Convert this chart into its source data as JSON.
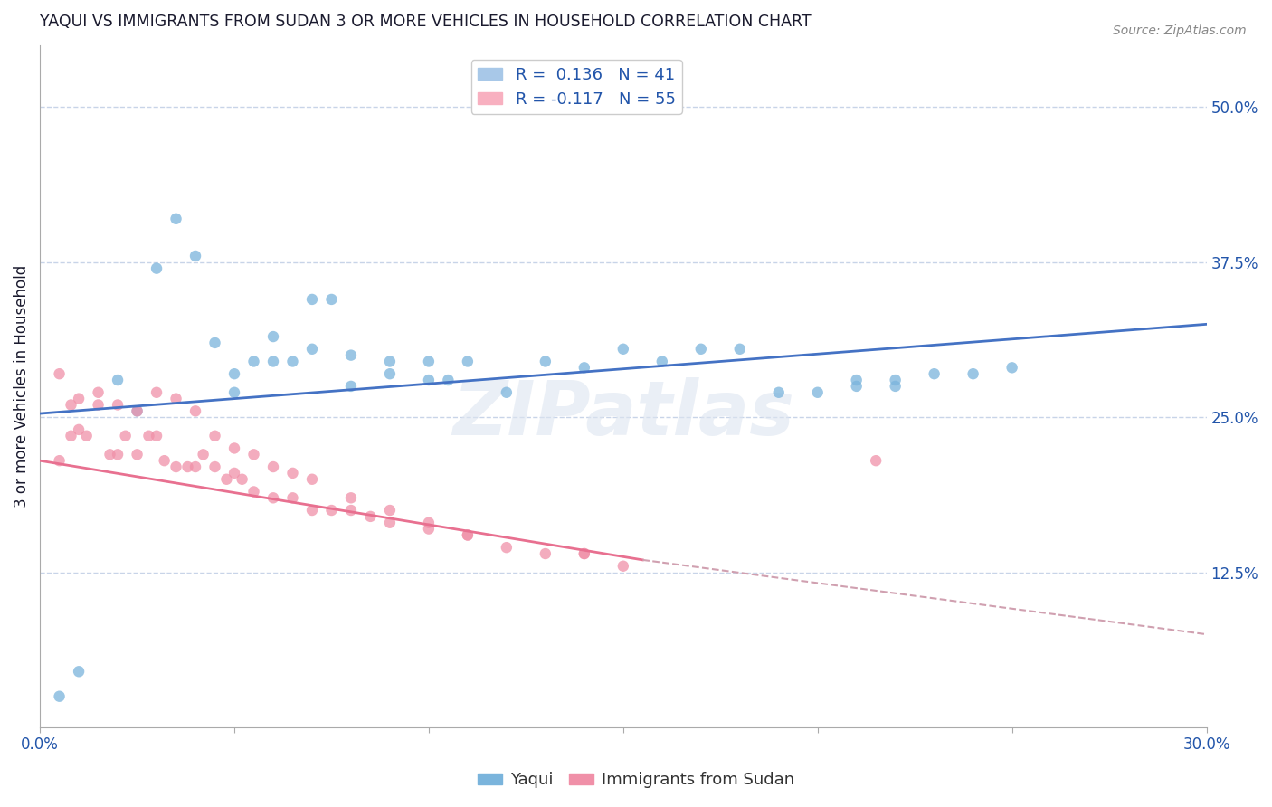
{
  "title": "YAQUI VS IMMIGRANTS FROM SUDAN 3 OR MORE VEHICLES IN HOUSEHOLD CORRELATION CHART",
  "source_text": "Source: ZipAtlas.com",
  "ylabel": "3 or more Vehicles in Household",
  "xlim": [
    0.0,
    0.3
  ],
  "ylim": [
    0.0,
    0.55
  ],
  "xticks": [
    0.0,
    0.05,
    0.1,
    0.15,
    0.2,
    0.25,
    0.3
  ],
  "xticklabels": [
    "0.0%",
    "",
    "",
    "",
    "",
    "",
    "30.0%"
  ],
  "yticks_right": [
    0.125,
    0.25,
    0.375,
    0.5
  ],
  "ytick_right_labels": [
    "12.5%",
    "25.0%",
    "37.5%",
    "50.0%"
  ],
  "legend_entries": [
    {
      "label": "R =  0.136   N = 41",
      "color": "#a8c8e8"
    },
    {
      "label": "R = -0.117   N = 55",
      "color": "#f8b0c0"
    }
  ],
  "yaqui_color": "#7ab4dc",
  "sudan_color": "#f090a8",
  "trend_yaqui_color": "#4472c4",
  "trend_sudan_color": "#e87090",
  "trend_sudan_dashed_color": "#d0a0b0",
  "watermark_text": "ZIPatlas",
  "yaqui_x": [
    0.005,
    0.01,
    0.02,
    0.025,
    0.03,
    0.035,
    0.04,
    0.045,
    0.05,
    0.055,
    0.06,
    0.065,
    0.07,
    0.075,
    0.08,
    0.09,
    0.1,
    0.105,
    0.11,
    0.12,
    0.13,
    0.14,
    0.15,
    0.16,
    0.17,
    0.18,
    0.19,
    0.2,
    0.21,
    0.22,
    0.23,
    0.24,
    0.25,
    0.06,
    0.07,
    0.08,
    0.09,
    0.1,
    0.21,
    0.22,
    0.05
  ],
  "yaqui_y": [
    0.025,
    0.045,
    0.28,
    0.255,
    0.37,
    0.41,
    0.38,
    0.31,
    0.27,
    0.295,
    0.315,
    0.295,
    0.345,
    0.345,
    0.3,
    0.295,
    0.28,
    0.28,
    0.295,
    0.27,
    0.295,
    0.29,
    0.305,
    0.295,
    0.305,
    0.305,
    0.27,
    0.27,
    0.275,
    0.28,
    0.285,
    0.285,
    0.29,
    0.295,
    0.305,
    0.275,
    0.285,
    0.295,
    0.28,
    0.275,
    0.285
  ],
  "sudan_x": [
    0.005,
    0.008,
    0.01,
    0.012,
    0.015,
    0.018,
    0.02,
    0.022,
    0.025,
    0.028,
    0.03,
    0.032,
    0.035,
    0.038,
    0.04,
    0.042,
    0.045,
    0.048,
    0.05,
    0.052,
    0.055,
    0.06,
    0.065,
    0.07,
    0.075,
    0.08,
    0.085,
    0.09,
    0.1,
    0.11,
    0.12,
    0.13,
    0.14,
    0.15,
    0.005,
    0.008,
    0.01,
    0.015,
    0.02,
    0.025,
    0.03,
    0.035,
    0.04,
    0.045,
    0.05,
    0.055,
    0.06,
    0.065,
    0.07,
    0.08,
    0.09,
    0.1,
    0.11,
    0.14,
    0.215
  ],
  "sudan_y": [
    0.215,
    0.235,
    0.24,
    0.235,
    0.26,
    0.22,
    0.22,
    0.235,
    0.22,
    0.235,
    0.235,
    0.215,
    0.21,
    0.21,
    0.21,
    0.22,
    0.21,
    0.2,
    0.205,
    0.2,
    0.19,
    0.185,
    0.185,
    0.175,
    0.175,
    0.175,
    0.17,
    0.165,
    0.16,
    0.155,
    0.145,
    0.14,
    0.14,
    0.13,
    0.285,
    0.26,
    0.265,
    0.27,
    0.26,
    0.255,
    0.27,
    0.265,
    0.255,
    0.235,
    0.225,
    0.22,
    0.21,
    0.205,
    0.2,
    0.185,
    0.175,
    0.165,
    0.155,
    0.14,
    0.215
  ],
  "trend_yaqui_x0": 0.0,
  "trend_yaqui_y0": 0.253,
  "trend_yaqui_x1": 0.3,
  "trend_yaqui_y1": 0.325,
  "trend_sudan_x0": 0.0,
  "trend_sudan_y0": 0.215,
  "trend_sudan_x_solid_end": 0.155,
  "trend_sudan_y_solid_end": 0.135,
  "trend_sudan_x1": 0.3,
  "trend_sudan_y1": 0.075,
  "background_color": "#ffffff",
  "grid_color": "#c8d4e8",
  "title_color": "#1a1a2e",
  "axis_label_color": "#2255aa"
}
